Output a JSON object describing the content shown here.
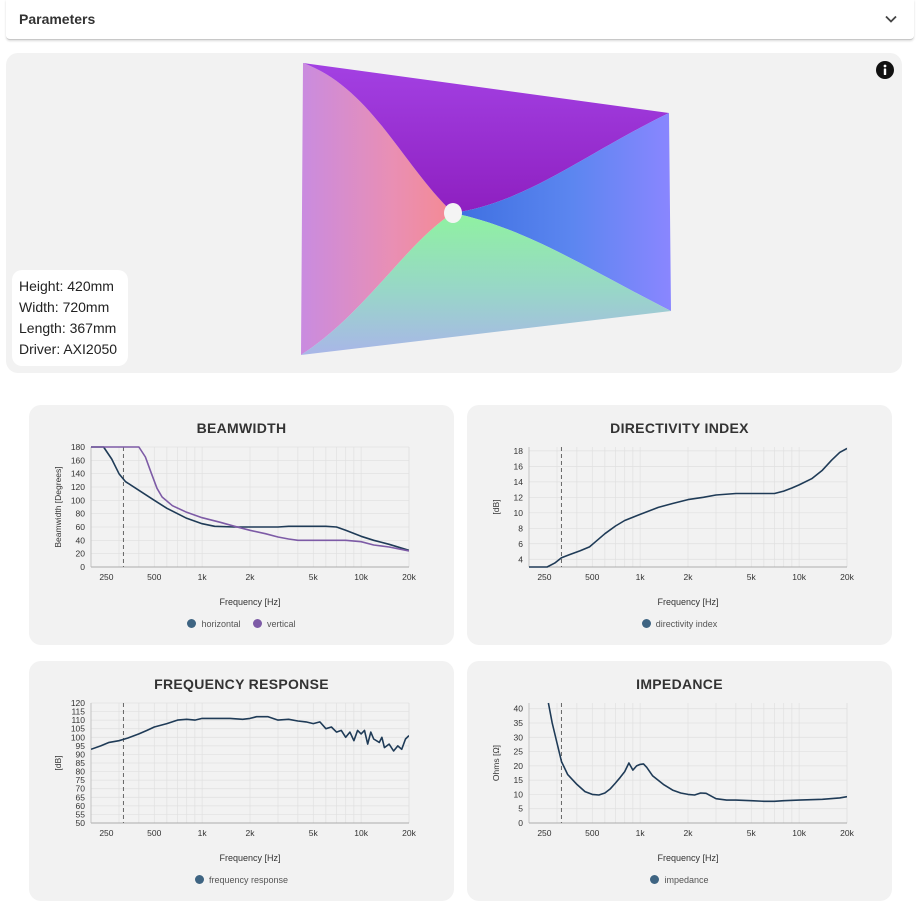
{
  "header": {
    "title": "Parameters"
  },
  "viewer": {
    "dimensions": [
      {
        "label": "Height: 420mm"
      },
      {
        "label": "Width: 720mm"
      },
      {
        "label": "Length: 367mm"
      },
      {
        "label": "Driver: AXI2050"
      }
    ]
  },
  "colors": {
    "navy": "#1f3b57",
    "purple": "#7d5ba6",
    "legend_navy": "#3e6482"
  },
  "chart_data": [
    {
      "type": "line",
      "title": "BEAMWIDTH",
      "xlabel": "Frequency [Hz]",
      "ylabel": "Beamwidth [Degrees]",
      "xscale": "log",
      "xlim": [
        200,
        20000
      ],
      "ylim": [
        0,
        180
      ],
      "yticks": [
        0,
        20,
        40,
        60,
        80,
        100,
        120,
        140,
        160,
        180
      ],
      "xticks": [
        {
          "v": 250,
          "label": "250"
        },
        {
          "v": 500,
          "label": "500"
        },
        {
          "v": 1000,
          "label": "1k"
        },
        {
          "v": 2000,
          "label": "2k"
        },
        {
          "v": 5000,
          "label": "5k"
        },
        {
          "v": 10000,
          "label": "10k"
        },
        {
          "v": 20000,
          "label": "20k"
        }
      ],
      "marker_x": 320,
      "series": [
        {
          "name": "horizontal",
          "color": "#1f3b57",
          "points": [
            [
              200,
              180
            ],
            [
              240,
              180
            ],
            [
              270,
              162
            ],
            [
              300,
              140
            ],
            [
              330,
              128
            ],
            [
              400,
              115
            ],
            [
              500,
              100
            ],
            [
              600,
              88
            ],
            [
              800,
              73
            ],
            [
              1000,
              65
            ],
            [
              1200,
              61
            ],
            [
              1600,
              60
            ],
            [
              2000,
              60
            ],
            [
              3000,
              60
            ],
            [
              3500,
              61
            ],
            [
              5000,
              61
            ],
            [
              6000,
              61
            ],
            [
              7000,
              60
            ],
            [
              8000,
              55
            ],
            [
              10000,
              46
            ],
            [
              12000,
              40
            ],
            [
              15000,
              34
            ],
            [
              20000,
              25
            ]
          ]
        },
        {
          "name": "vertical",
          "color": "#7d5ba6",
          "points": [
            [
              200,
              180
            ],
            [
              400,
              180
            ],
            [
              440,
              165
            ],
            [
              480,
              140
            ],
            [
              520,
              118
            ],
            [
              560,
              105
            ],
            [
              650,
              92
            ],
            [
              800,
              82
            ],
            [
              1000,
              74
            ],
            [
              1300,
              67
            ],
            [
              1600,
              61
            ],
            [
              2000,
              55
            ],
            [
              2500,
              50
            ],
            [
              3000,
              45
            ],
            [
              3500,
              42
            ],
            [
              4000,
              40
            ],
            [
              5000,
              40
            ],
            [
              8000,
              40
            ],
            [
              10000,
              38
            ],
            [
              12000,
              33
            ],
            [
              15000,
              30
            ],
            [
              20000,
              24
            ]
          ]
        }
      ]
    },
    {
      "type": "line",
      "title": "DIRECTIVITY INDEX",
      "xlabel": "Frequency [Hz]",
      "ylabel": "[dB]",
      "xscale": "log",
      "xlim": [
        200,
        20000
      ],
      "ylim": [
        3,
        18.5
      ],
      "yticks": [
        4,
        6,
        8,
        10,
        12,
        14,
        16,
        18
      ],
      "xticks": [
        {
          "v": 250,
          "label": "250"
        },
        {
          "v": 500,
          "label": "500"
        },
        {
          "v": 1000,
          "label": "1k"
        },
        {
          "v": 2000,
          "label": "2k"
        },
        {
          "v": 5000,
          "label": "5k"
        },
        {
          "v": 10000,
          "label": "10k"
        },
        {
          "v": 20000,
          "label": "20k"
        }
      ],
      "marker_x": 320,
      "series": [
        {
          "name": "directivity index",
          "color": "#1f3b57",
          "points": [
            [
              200,
              3
            ],
            [
              260,
              3
            ],
            [
              290,
              3.5
            ],
            [
              320,
              4.2
            ],
            [
              360,
              4.6
            ],
            [
              420,
              5.1
            ],
            [
              480,
              5.6
            ],
            [
              520,
              6.2
            ],
            [
              600,
              7.3
            ],
            [
              700,
              8.3
            ],
            [
              800,
              9
            ],
            [
              1000,
              9.8
            ],
            [
              1300,
              10.7
            ],
            [
              1600,
              11.2
            ],
            [
              2000,
              11.7
            ],
            [
              2500,
              12
            ],
            [
              3000,
              12.3
            ],
            [
              4000,
              12.5
            ],
            [
              5000,
              12.5
            ],
            [
              7000,
              12.5
            ],
            [
              8000,
              12.8
            ],
            [
              9000,
              13.2
            ],
            [
              10000,
              13.6
            ],
            [
              12000,
              14.4
            ],
            [
              14000,
              15.5
            ],
            [
              16000,
              16.8
            ],
            [
              18000,
              17.8
            ],
            [
              20000,
              18.3
            ]
          ]
        }
      ]
    },
    {
      "type": "line",
      "title": "FREQUENCY RESPONSE",
      "xlabel": "Frequency [Hz]",
      "ylabel": "[dB]",
      "xscale": "log",
      "xlim": [
        200,
        20000
      ],
      "ylim": [
        50,
        120
      ],
      "yticks": [
        50,
        55,
        60,
        65,
        70,
        75,
        80,
        85,
        90,
        95,
        100,
        105,
        110,
        115,
        120
      ],
      "xticks": [
        {
          "v": 250,
          "label": "250"
        },
        {
          "v": 500,
          "label": "500"
        },
        {
          "v": 1000,
          "label": "1k"
        },
        {
          "v": 2000,
          "label": "2k"
        },
        {
          "v": 5000,
          "label": "5k"
        },
        {
          "v": 10000,
          "label": "10k"
        },
        {
          "v": 20000,
          "label": "20k"
        }
      ],
      "marker_x": 320,
      "series": [
        {
          "name": "frequency response",
          "color": "#1f3b57",
          "points": [
            [
              200,
              93
            ],
            [
              230,
              95
            ],
            [
              260,
              97
            ],
            [
              300,
              98
            ],
            [
              340,
              99.5
            ],
            [
              400,
              102
            ],
            [
              450,
              104
            ],
            [
              500,
              106
            ],
            [
              600,
              108
            ],
            [
              700,
              110
            ],
            [
              800,
              110.5
            ],
            [
              900,
              110
            ],
            [
              1000,
              111
            ],
            [
              1200,
              111
            ],
            [
              1500,
              111
            ],
            [
              1800,
              110.5
            ],
            [
              2000,
              111
            ],
            [
              2200,
              112
            ],
            [
              2600,
              112
            ],
            [
              3000,
              110
            ],
            [
              3500,
              110.5
            ],
            [
              4000,
              109.5
            ],
            [
              4500,
              109
            ],
            [
              5000,
              108
            ],
            [
              5500,
              109
            ],
            [
              6000,
              105
            ],
            [
              6500,
              106
            ],
            [
              7000,
              103
            ],
            [
              7500,
              104
            ],
            [
              8000,
              100
            ],
            [
              8500,
              103
            ],
            [
              9000,
              98
            ],
            [
              9500,
              104
            ],
            [
              10000,
              102
            ],
            [
              10500,
              104
            ],
            [
              11000,
              96
            ],
            [
              11500,
              103
            ],
            [
              12000,
              99
            ],
            [
              13000,
              97
            ],
            [
              13500,
              100
            ],
            [
              14000,
              94
            ],
            [
              15000,
              96
            ],
            [
              16000,
              92
            ],
            [
              17000,
              95
            ],
            [
              18000,
              93
            ],
            [
              19000,
              99
            ],
            [
              20000,
              101
            ]
          ]
        }
      ]
    },
    {
      "type": "line",
      "title": "IMPEDANCE",
      "xlabel": "Frequency [Hz]",
      "ylabel": "Ohms [Ω]",
      "xscale": "log",
      "xlim": [
        200,
        20000
      ],
      "ylim": [
        0,
        42
      ],
      "yticks": [
        0,
        5,
        10,
        15,
        20,
        25,
        30,
        35,
        40
      ],
      "xticks": [
        {
          "v": 250,
          "label": "250"
        },
        {
          "v": 500,
          "label": "500"
        },
        {
          "v": 1000,
          "label": "1k"
        },
        {
          "v": 2000,
          "label": "2k"
        },
        {
          "v": 5000,
          "label": "5k"
        },
        {
          "v": 10000,
          "label": "10k"
        },
        {
          "v": 20000,
          "label": "20k"
        }
      ],
      "marker_x": 320,
      "series": [
        {
          "name": "impedance",
          "color": "#1f3b57",
          "points": [
            [
              265,
              42
            ],
            [
              280,
              35
            ],
            [
              300,
              28
            ],
            [
              320,
              21.5
            ],
            [
              350,
              17
            ],
            [
              400,
              13.5
            ],
            [
              450,
              11
            ],
            [
              500,
              10
            ],
            [
              550,
              9.8
            ],
            [
              600,
              10.5
            ],
            [
              650,
              12
            ],
            [
              700,
              14
            ],
            [
              750,
              16
            ],
            [
              800,
              18
            ],
            [
              850,
              21
            ],
            [
              900,
              18.5
            ],
            [
              950,
              20
            ],
            [
              1000,
              20.5
            ],
            [
              1050,
              20.7
            ],
            [
              1100,
              19.5
            ],
            [
              1200,
              16.5
            ],
            [
              1400,
              13.5
            ],
            [
              1600,
              11.5
            ],
            [
              1800,
              10.5
            ],
            [
              2000,
              10
            ],
            [
              2200,
              9.8
            ],
            [
              2400,
              10.5
            ],
            [
              2600,
              10.4
            ],
            [
              3000,
              8.5
            ],
            [
              3500,
              8
            ],
            [
              4000,
              8
            ],
            [
              5000,
              7.8
            ],
            [
              6000,
              7.6
            ],
            [
              7000,
              7.6
            ],
            [
              8000,
              7.8
            ],
            [
              10000,
              8
            ],
            [
              14000,
              8.3
            ],
            [
              18000,
              8.8
            ],
            [
              20000,
              9.2
            ]
          ]
        }
      ]
    }
  ]
}
